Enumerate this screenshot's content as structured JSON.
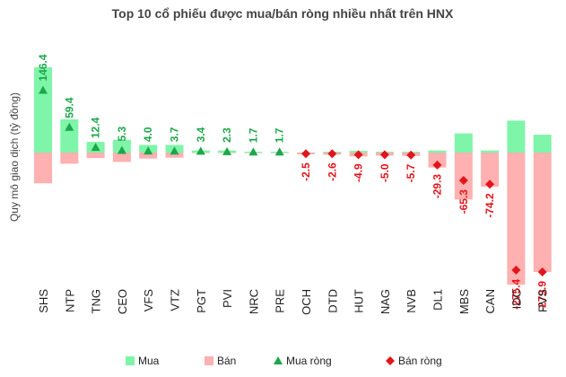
{
  "chart_data": {
    "type": "bar",
    "title": "Top 10 cổ phiếu được mua/bán ròng nhiều nhất trên HNX",
    "ylabel": "Quy mô giao dịch (tỷ đồng)",
    "xlabel": "",
    "categories": [
      "SHS",
      "NTP",
      "TNG",
      "CEO",
      "VFS",
      "VTZ",
      "PGT",
      "PVI",
      "NRC",
      "PRE",
      "OCH",
      "DTD",
      "HUT",
      "NAG",
      "NVB",
      "DL1",
      "MBS",
      "CAN",
      "IDC",
      "PVS"
    ],
    "series": [
      {
        "name": "Mua",
        "color": "#7ef5a8",
        "values": [
          200.0,
          78.0,
          25.0,
          30.0,
          18.0,
          18.0,
          5.0,
          5.0,
          2.0,
          2.0,
          0.5,
          2.0,
          4.0,
          2.0,
          2.0,
          5.0,
          45.0,
          5.0,
          75.0,
          42.0
        ]
      },
      {
        "name": "Bán",
        "color": "#ffb0b0",
        "values": [
          -72.0,
          -26.0,
          -13.0,
          -22.0,
          -14.0,
          -12.0,
          -1.0,
          -1.0,
          -0.5,
          -0.5,
          -4.0,
          -5.0,
          -9.0,
          -7.0,
          -8.0,
          -35.0,
          -110.0,
          -80.0,
          -310.0,
          -280.0
        ]
      },
      {
        "name": "Mua ròng",
        "color": "#1aa84a",
        "marker": "triangle",
        "values": [
          146.4,
          59.4,
          12.4,
          5.3,
          4.0,
          3.7,
          3.4,
          2.3,
          1.7,
          1.7,
          null,
          null,
          null,
          null,
          null,
          null,
          null,
          null,
          null,
          null
        ],
        "labels": [
          "146.4",
          "59.4",
          "12.4",
          "5.3",
          "4.0",
          "3.7",
          "3.4",
          "2.3",
          "1.7",
          "1.7",
          "",
          "",
          "",
          "",
          "",
          "",
          "",
          "",
          "",
          ""
        ]
      },
      {
        "name": "Bán ròng",
        "color": "#e3141b",
        "marker": "diamond",
        "values": [
          null,
          null,
          null,
          null,
          null,
          null,
          null,
          null,
          null,
          null,
          -2.5,
          -2.6,
          -4.9,
          -5.0,
          -5.7,
          -29.3,
          -65.3,
          -74.2,
          -275.4,
          -279.9
        ],
        "labels": [
          "",
          "",
          "",
          "",
          "",
          "",
          "",
          "",
          "",
          "",
          "-2.5",
          "-2.6",
          "-4.9",
          "-5.0",
          "-5.7",
          "-29.3",
          "-65.3",
          "-74.2",
          "-275.4",
          "-279.9"
        ]
      }
    ],
    "ylim": [
      -320,
      210
    ],
    "grid": false,
    "legend": "bottom"
  }
}
